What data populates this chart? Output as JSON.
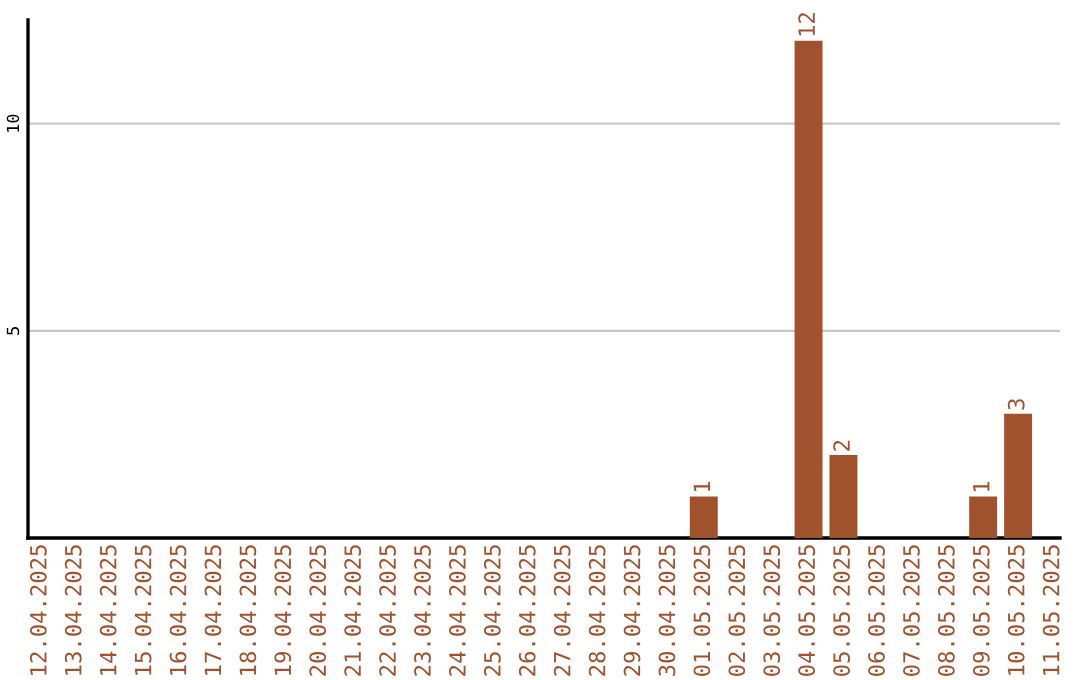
{
  "chart_data": {
    "type": "bar",
    "categories": [
      "12.04.2025",
      "13.04.2025",
      "14.04.2025",
      "15.04.2025",
      "16.04.2025",
      "17.04.2025",
      "18.04.2025",
      "19.04.2025",
      "20.04.2025",
      "21.04.2025",
      "22.04.2025",
      "23.04.2025",
      "24.04.2025",
      "25.04.2025",
      "26.04.2025",
      "27.04.2025",
      "28.04.2025",
      "29.04.2025",
      "30.04.2025",
      "01.05.2025",
      "02.05.2025",
      "03.05.2025",
      "04.05.2025",
      "05.05.2025",
      "06.05.2025",
      "07.05.2025",
      "08.05.2025",
      "09.05.2025",
      "10.05.2025",
      "11.05.2025"
    ],
    "values": [
      0,
      0,
      0,
      0,
      0,
      0,
      0,
      0,
      0,
      0,
      0,
      0,
      0,
      0,
      0,
      0,
      0,
      0,
      0,
      1,
      0,
      0,
      12,
      2,
      0,
      0,
      0,
      1,
      3,
      0
    ],
    "value_labels": [
      null,
      null,
      null,
      null,
      null,
      null,
      null,
      null,
      null,
      null,
      null,
      null,
      null,
      null,
      null,
      null,
      null,
      null,
      null,
      "1",
      null,
      null,
      "12",
      "2",
      null,
      null,
      null,
      "1",
      "3",
      null
    ],
    "color": "#a0522d",
    "ylim": [
      0,
      12.5
    ],
    "yticks": [
      5,
      10
    ],
    "grid": "y"
  }
}
